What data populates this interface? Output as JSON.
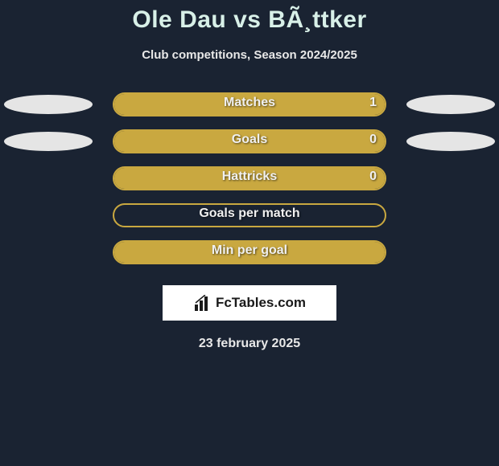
{
  "title": "Ole Dau vs BÃ¸ttker",
  "subtitle": "Club competitions, Season 2024/2025",
  "colors": {
    "background": "#1a2332",
    "bar_border": "#c9a840",
    "bar_fill": "#c9a840",
    "ellipse": "#e5e5e5",
    "title_color": "#d8f0e8",
    "text_color": "#e8e8e8",
    "logo_bg": "#ffffff"
  },
  "bar_geometry": {
    "outer_width": 340,
    "outer_height": 30,
    "border_radius": 15,
    "border_width": 2
  },
  "rows": [
    {
      "label": "Matches",
      "value": "1",
      "fill_width": 336,
      "show_value": true,
      "left_ellipse": true,
      "right_ellipse": true
    },
    {
      "label": "Goals",
      "value": "0",
      "fill_width": 336,
      "show_value": true,
      "left_ellipse": true,
      "right_ellipse": true
    },
    {
      "label": "Hattricks",
      "value": "0",
      "fill_width": 336,
      "show_value": true,
      "left_ellipse": false,
      "right_ellipse": false
    },
    {
      "label": "Goals per match",
      "value": "",
      "fill_width": 0,
      "show_value": false,
      "left_ellipse": false,
      "right_ellipse": false
    },
    {
      "label": "Min per goal",
      "value": "",
      "fill_width": 336,
      "show_value": false,
      "left_ellipse": false,
      "right_ellipse": false
    }
  ],
  "logo_text": "FcTables.com",
  "date": "23 february 2025"
}
